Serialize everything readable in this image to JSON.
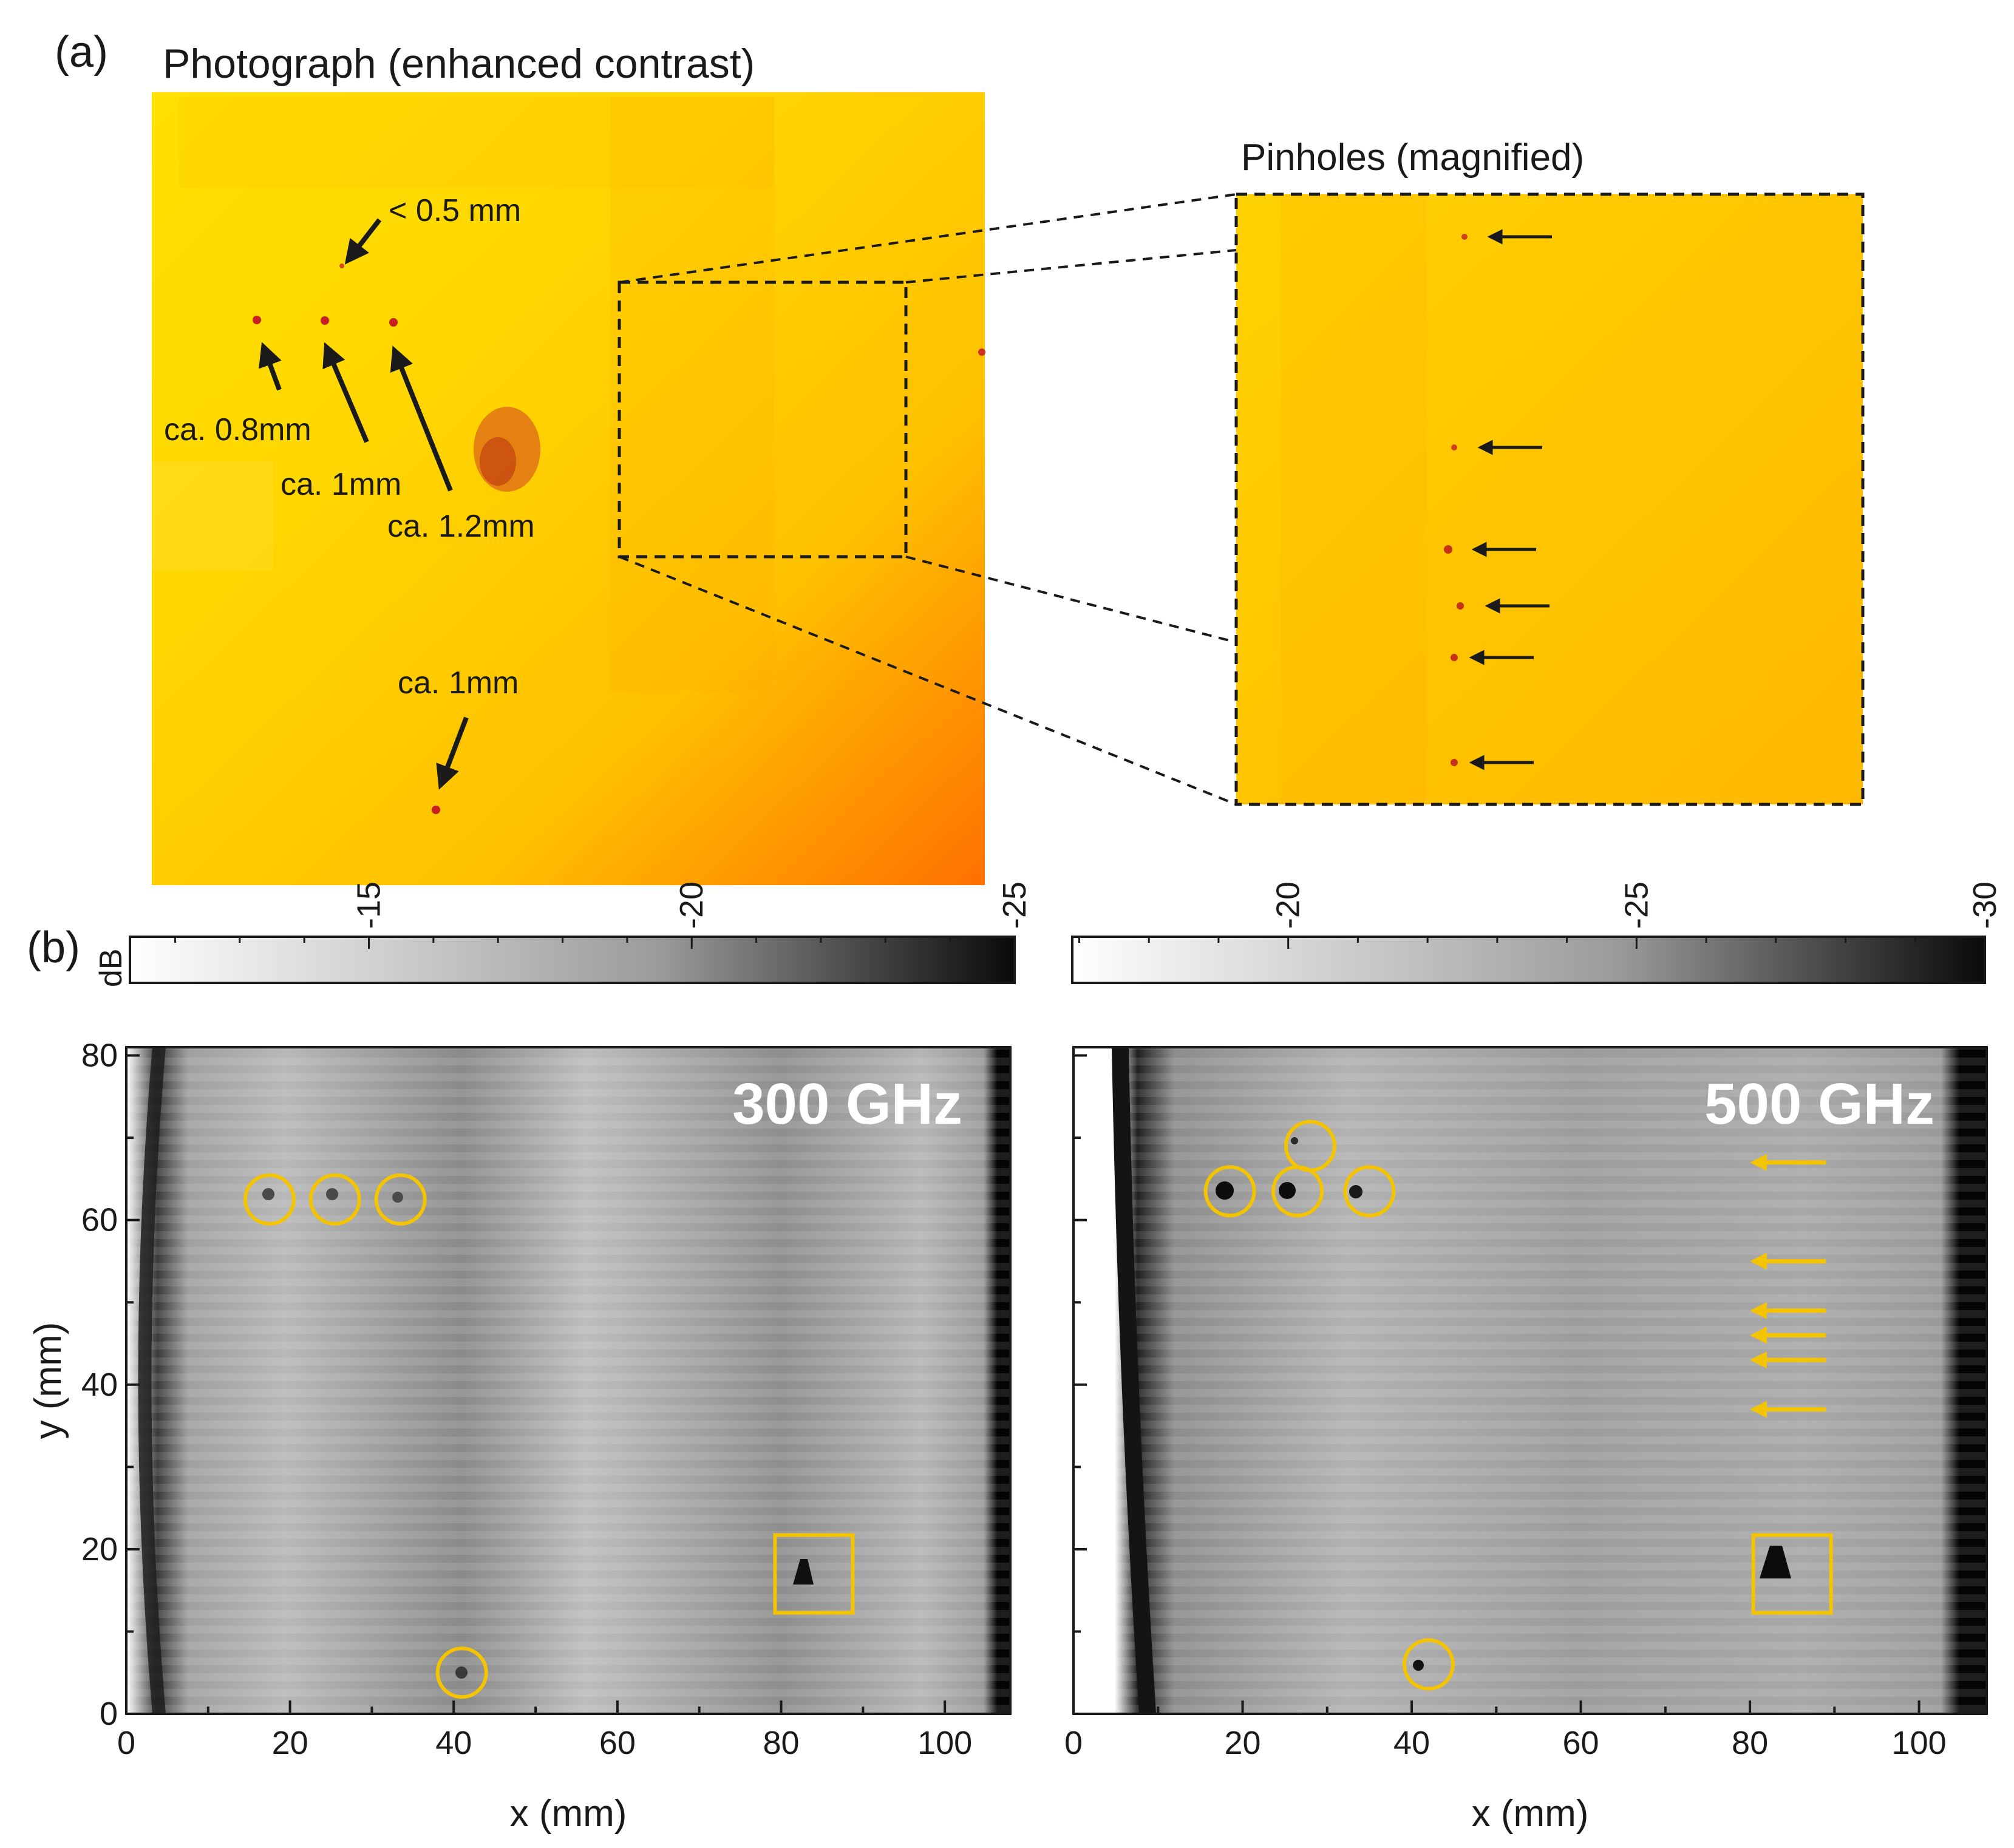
{
  "panel_a": {
    "label": "(a)",
    "title": "Photograph (enhanced contrast)",
    "annotations": [
      "< 0.5 mm",
      "ca. 0.8mm",
      "ca. 1mm",
      "ca. 1.2mm",
      "ca. 1mm"
    ],
    "inset_title": "Pinholes (magnified)"
  },
  "panel_b": {
    "label": "(b)",
    "colorbar_unit": "dB",
    "left": {
      "frequency_label": "300 GHz",
      "colorbar_ticks": [
        "-15",
        "-20",
        "-25"
      ],
      "colorbar_range": [
        -11.3,
        -25
      ],
      "circled_pinholes": [
        {
          "x": 17.5,
          "y": 62.5
        },
        {
          "x": 25.5,
          "y": 62.5
        },
        {
          "x": 33.5,
          "y": 62.5
        },
        {
          "x": 41.0,
          "y": 5.0
        }
      ],
      "square_defect": {
        "x": 84,
        "y": 17
      }
    },
    "right": {
      "frequency_label": "500 GHz",
      "colorbar_ticks": [
        "-20",
        "-25",
        "-30"
      ],
      "colorbar_range": [
        -16.9,
        -30
      ],
      "circled_pinholes": [
        {
          "x": 18.5,
          "y": 63.5
        },
        {
          "x": 26.5,
          "y": 63.5
        },
        {
          "x": 35.0,
          "y": 63.5
        },
        {
          "x": 28.0,
          "y": 69.0
        },
        {
          "x": 42.0,
          "y": 6.0
        }
      ],
      "square_defect": {
        "x": 85,
        "y": 17
      },
      "arrow_rows_y": [
        67,
        55,
        49,
        46,
        43,
        37
      ]
    },
    "x_axis": {
      "label": "x (mm)",
      "ticks": [
        "0",
        "20",
        "40",
        "60",
        "80",
        "100"
      ]
    },
    "y_axis": {
      "label": "y (mm)",
      "ticks": [
        "0",
        "20",
        "40",
        "60",
        "80"
      ]
    }
  },
  "chart_data": [
    {
      "type": "heatmap",
      "title": "300 GHz",
      "xlabel": "x (mm)",
      "ylabel": "y (mm)",
      "xlim": [
        0,
        108
      ],
      "ylim": [
        0,
        81
      ],
      "colorbar": {
        "label": "dB",
        "range": [
          -11.3,
          -25
        ],
        "ticks": [
          -15,
          -20,
          -25
        ]
      },
      "markers": {
        "circles": [
          [
            17.5,
            62.5
          ],
          [
            25.5,
            62.5
          ],
          [
            33.5,
            62.5
          ],
          [
            41.0,
            5.0
          ]
        ],
        "square": [
          84,
          17
        ]
      }
    },
    {
      "type": "heatmap",
      "title": "500 GHz",
      "xlabel": "x (mm)",
      "ylabel": "y (mm)",
      "xlim": [
        0,
        108
      ],
      "ylim": [
        0,
        81
      ],
      "colorbar": {
        "label": "dB",
        "range": [
          -16.9,
          -30
        ],
        "ticks": [
          -20,
          -25,
          -30
        ]
      },
      "markers": {
        "circles": [
          [
            18.5,
            63.5
          ],
          [
            26.5,
            63.5
          ],
          [
            35.0,
            63.5
          ],
          [
            28.0,
            69.0
          ],
          [
            42.0,
            6.0
          ]
        ],
        "square": [
          85,
          17
        ]
      }
    }
  ],
  "colors": {
    "annotation_yellow": "#f5c400",
    "photo_light": "#fff200",
    "photo_dark": "#ff6a00",
    "pinhole_red": "#c82020"
  }
}
